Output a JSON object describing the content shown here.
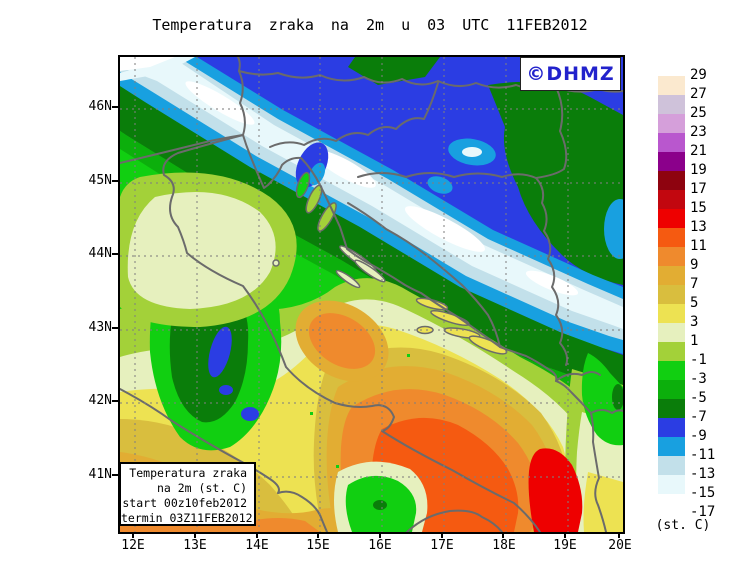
{
  "title": "Temperatura zraka na 2m u 03 UTC 11FEB2012",
  "logo": {
    "text": "©DHMZ",
    "color": "#2222CC"
  },
  "axes": {
    "lat": [
      "46N",
      "45N",
      "44N",
      "43N",
      "42N",
      "41N"
    ],
    "lon": [
      "12E",
      "13E",
      "14E",
      "15E",
      "16E",
      "17E",
      "18E",
      "19E",
      "20E"
    ]
  },
  "colorbar": {
    "unit": "(st. C)",
    "labels": [
      "29",
      "27",
      "25",
      "23",
      "21",
      "19",
      "17",
      "15",
      "13",
      "11",
      "9",
      "7",
      "5",
      "3",
      "1",
      "-1",
      "-3",
      "-5",
      "-7",
      "-9",
      "-11",
      "-13",
      "-15",
      "-17"
    ],
    "cells": [
      "#FBE9CF",
      "#CFC2DA",
      "#D59FDA",
      "#B957CE",
      "#8B008B",
      "#8E030F",
      "#C2070F",
      "#EE0000",
      "#F55A11",
      "#EF8A2D",
      "#E2AD33",
      "#D9BE3E",
      "#EDE252",
      "#E6F0BE",
      "#A3D139",
      "#11CF11",
      "#0CAF0C",
      "#0A7D0A",
      "#2B3DE3",
      "#18A0E0",
      "#C2E0EA",
      "#E8F8FB",
      "#FFFFFF"
    ]
  },
  "info_box": {
    "lines": [
      "Temperatura zraka",
      "na 2m (st. C)",
      "start 00z10feb2012",
      "termin 03Z11FEB2012"
    ]
  },
  "colors": {
    "coastline": "#6B6B6B",
    "map_border": "#000000"
  }
}
